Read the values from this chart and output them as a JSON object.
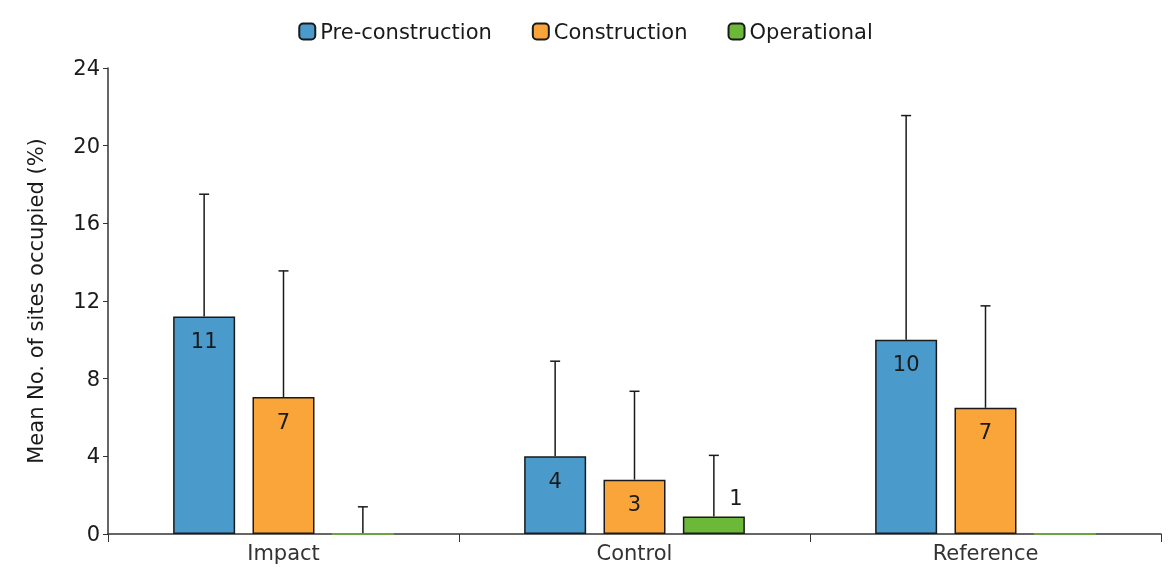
{
  "chart_data": {
    "type": "bar",
    "ylabel": "Mean No. of sites occupied (%)",
    "categories": [
      "Impact",
      "Control",
      "Reference"
    ],
    "series": [
      {
        "name": "Pre-construction",
        "color": "#4a9bcb",
        "values": [
          11.2,
          4,
          10
        ],
        "errors": [
          [
            11.2,
            17.5
          ],
          [
            4,
            8.9
          ],
          [
            10,
            21.55
          ]
        ],
        "value_labels": [
          "11",
          "4",
          "10"
        ]
      },
      {
        "name": "Construction",
        "color": "#f9a53a",
        "values": [
          7.05,
          2.8,
          6.5
        ],
        "errors": [
          [
            7.05,
            13.55
          ],
          [
            2.8,
            7.35
          ],
          [
            6.5,
            11.75
          ]
        ],
        "value_labels": [
          "7",
          "3",
          "7"
        ]
      },
      {
        "name": "Operational",
        "color": "#6cb93a",
        "values": [
          0,
          0.9,
          0
        ],
        "errors": [
          [
            0,
            1.4
          ],
          [
            0.9,
            4.05
          ],
          null
        ],
        "value_labels": [
          null,
          "1",
          null
        ]
      }
    ],
    "ylim": [
      0,
      24
    ],
    "yticks": [
      0,
      4,
      8,
      12,
      16,
      20,
      24
    ],
    "grid": false,
    "legend": "top"
  }
}
